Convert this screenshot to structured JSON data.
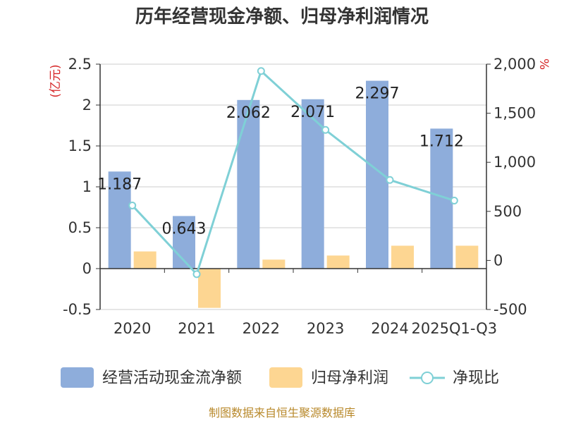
{
  "title": "历年经营现金净额、归母净利润情况",
  "source": "制图数据来自恒生聚源数据库",
  "colors": {
    "cash_flow": "#8eaddb",
    "net_profit": "#fdd692",
    "ratio": "#7fd0d6",
    "axis_unit": "#d62728",
    "source": "#b8892b"
  },
  "chart_data": {
    "type": "bar",
    "categories": [
      "2020",
      "2021",
      "2022",
      "2023",
      "2024",
      "2025Q1-Q3"
    ],
    "y_left": {
      "unit": "(亿元)",
      "ylim": [
        -0.5,
        2.5
      ],
      "ticks": [
        "-0.5",
        "0",
        "0.5",
        "1",
        "1.5",
        "2",
        "2.5"
      ],
      "tick_values": [
        -0.5,
        0,
        0.5,
        1,
        1.5,
        2,
        2.5
      ]
    },
    "y_right": {
      "unit": "%",
      "ylim": [
        -500,
        2000
      ],
      "ticks": [
        "-500",
        "0",
        "500",
        "1,000",
        "1,500",
        "2,000"
      ],
      "tick_values": [
        -500,
        0,
        500,
        1000,
        1500,
        2000
      ]
    },
    "grid": true,
    "legend_position": "bottom",
    "series": [
      {
        "name": "经营活动现金流净额",
        "type": "bar",
        "axis": "left",
        "values": [
          1.187,
          0.643,
          2.062,
          2.071,
          2.297,
          1.712
        ],
        "labels": [
          "1.187",
          "0.643",
          "2.062",
          "2.071",
          "2.297",
          "1.712"
        ]
      },
      {
        "name": "归母净利润",
        "type": "bar",
        "axis": "left",
        "values": [
          0.21,
          -0.48,
          0.11,
          0.16,
          0.28,
          0.28
        ]
      },
      {
        "name": "净现比",
        "type": "line",
        "axis": "right",
        "values": [
          560,
          -140,
          1930,
          1330,
          820,
          610
        ]
      }
    ]
  }
}
